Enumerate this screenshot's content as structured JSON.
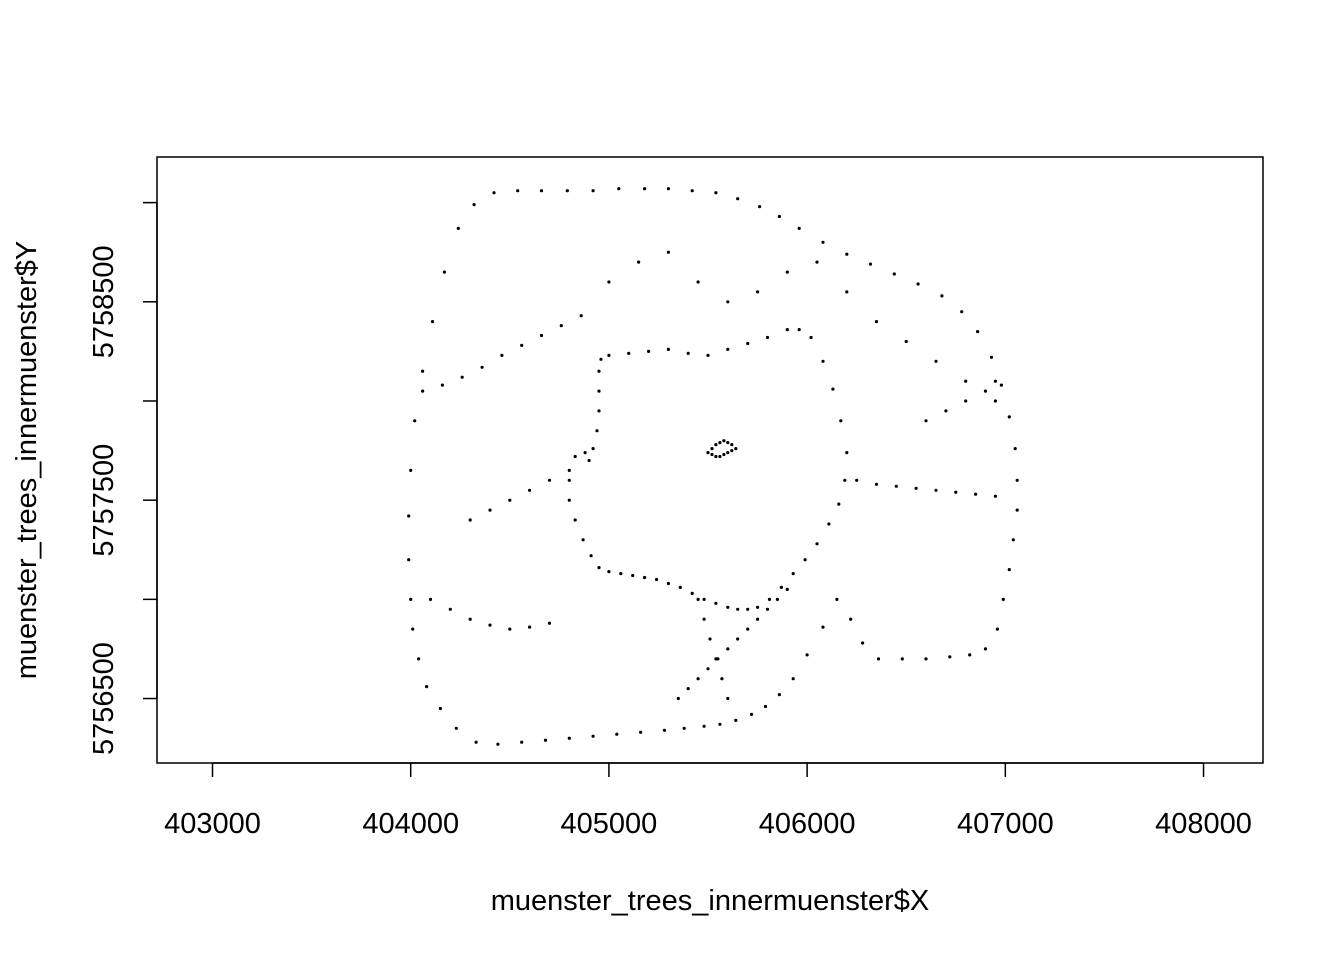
{
  "chart_data": {
    "type": "scatter",
    "title": "",
    "xlabel": "muenster_trees_innermuenster$X",
    "ylabel": "muenster_trees_innermuenster$Y",
    "xlim": [
      402720,
      408300
    ],
    "ylim": [
      5756175,
      5759230
    ],
    "x_ticks": [
      403000,
      404000,
      405000,
      406000,
      407000,
      408000
    ],
    "x_tick_labels": [
      "403000",
      "404000",
      "405000",
      "406000",
      "407000",
      "408000"
    ],
    "y_ticks": [
      5756500,
      5757000,
      5757500,
      5758000,
      5758500,
      5759000
    ],
    "y_tick_labels": [
      "5756500",
      "",
      "5757500",
      "",
      "5758500",
      ""
    ],
    "grid": false,
    "legend": "none",
    "point_color": "#000000",
    "point_style": "small filled dots",
    "series": [
      {
        "x": [
          404000,
          404020,
          404060,
          404110,
          404170,
          404240,
          404320,
          404420,
          404540,
          404660,
          404790,
          404920,
          405050,
          405180,
          405300,
          405420,
          405540,
          405650,
          405760,
          405860,
          405960,
          406080,
          406200,
          406320,
          406440,
          406560,
          406680,
          406780,
          406860,
          406930,
          406980,
          407020,
          407050,
          407060,
          407060,
          407040,
          407020,
          406990,
          406960,
          406900,
          406820,
          406720,
          406600,
          406480,
          406360,
          406280,
          406220,
          406150,
          406080,
          406000,
          405930,
          405860,
          405790,
          405720,
          405640,
          405560,
          405480,
          405380,
          405280,
          405160,
          405040,
          404920,
          404800,
          404680,
          404560,
          404440,
          404330,
          404230,
          404150,
          404080,
          404040,
          404010,
          404000,
          403990,
          403990
        ],
        "y": [
          5757650,
          5757900,
          5758150,
          5758400,
          5758650,
          5758870,
          5758990,
          5759050,
          5759060,
          5759060,
          5759060,
          5759060,
          5759070,
          5759070,
          5759070,
          5759060,
          5759050,
          5759020,
          5758980,
          5758930,
          5758870,
          5758800,
          5758740,
          5758690,
          5758640,
          5758590,
          5758530,
          5758450,
          5758350,
          5758220,
          5758080,
          5757920,
          5757760,
          5757600,
          5757450,
          5757300,
          5757150,
          5757000,
          5756850,
          5756750,
          5756720,
          5756710,
          5756700,
          5756700,
          5756700,
          5756780,
          5756900,
          5757000,
          5756860,
          5756720,
          5756600,
          5756520,
          5756460,
          5756420,
          5756390,
          5756370,
          5756360,
          5756350,
          5756340,
          5756330,
          5756320,
          5756310,
          5756300,
          5756290,
          5756280,
          5756270,
          5756280,
          5756350,
          5756450,
          5756560,
          5756700,
          5756850,
          5757000,
          5757200,
          5757420
        ]
      },
      {
        "x": [
          404960,
          405000,
          405100,
          405200,
          405300,
          405400,
          405500,
          405600,
          405700,
          405800,
          405900,
          405960,
          406020,
          406080,
          406130,
          406170,
          406200,
          406190,
          406160,
          406110,
          406050,
          405990,
          405930,
          405870,
          405810,
          405750,
          405700,
          405650,
          405600,
          405540,
          405480,
          405420,
          405360,
          405300,
          405240,
          405180,
          405120,
          405060,
          405000,
          404950,
          404910,
          404870,
          404830,
          404800,
          404800,
          404830,
          404880,
          404920,
          404940,
          404950,
          404950,
          404950
        ],
        "y": [
          5758210,
          5758230,
          5758240,
          5758250,
          5758260,
          5758240,
          5758230,
          5758260,
          5758290,
          5758320,
          5758360,
          5758360,
          5758320,
          5758200,
          5758060,
          5757900,
          5757740,
          5757600,
          5757480,
          5757380,
          5757280,
          5757200,
          5757130,
          5757060,
          5757000,
          5756960,
          5756950,
          5756950,
          5756960,
          5756980,
          5757000,
          5757030,
          5757060,
          5757080,
          5757100,
          5757110,
          5757120,
          5757130,
          5757140,
          5757160,
          5757220,
          5757300,
          5757400,
          5757500,
          5757600,
          5757720,
          5757740,
          5757760,
          5757850,
          5757950,
          5758050,
          5758150
        ]
      },
      {
        "x": [
          405500,
          405520,
          405540,
          405560,
          405580,
          405600,
          405620,
          405640,
          405520,
          405540,
          405560,
          405580,
          405600,
          405620
        ],
        "y": [
          5757740,
          5757760,
          5757780,
          5757790,
          5757800,
          5757790,
          5757780,
          5757760,
          5757730,
          5757720,
          5757720,
          5757730,
          5757740,
          5757750
        ]
      },
      {
        "x": [
          404060,
          404160,
          404260,
          404360,
          404460,
          404560,
          404660,
          404760,
          404860,
          405000,
          405150,
          405300,
          405450,
          405600,
          405750,
          405900,
          406050,
          406200,
          406350,
          406500,
          406650,
          406800,
          406950,
          404100,
          404200,
          404300,
          404400,
          404500,
          404600,
          404700,
          405350,
          405400,
          405450,
          405500,
          405550,
          405600,
          405650,
          405700,
          405750,
          405800,
          405850,
          405900,
          406250,
          406350,
          406450,
          406550,
          406650,
          406750,
          406850,
          406950,
          405450,
          405480,
          405510,
          405540,
          405570,
          405600,
          404300,
          404400,
          404500,
          404600,
          404700,
          404800,
          404900,
          406600,
          406700,
          406800,
          406900,
          406950
        ],
        "y": [
          5758050,
          5758080,
          5758120,
          5758170,
          5758230,
          5758280,
          5758330,
          5758380,
          5758430,
          5758600,
          5758700,
          5758750,
          5758600,
          5758500,
          5758550,
          5758650,
          5758700,
          5758550,
          5758400,
          5758300,
          5758200,
          5758100,
          5758000,
          5757000,
          5756950,
          5756900,
          5756870,
          5756850,
          5756860,
          5756880,
          5756500,
          5756550,
          5756600,
          5756650,
          5756700,
          5756750,
          5756800,
          5756850,
          5756900,
          5756950,
          5757000,
          5757050,
          5757600,
          5757580,
          5757570,
          5757560,
          5757550,
          5757540,
          5757530,
          5757520,
          5757000,
          5756900,
          5756800,
          5756700,
          5756600,
          5756500,
          5757400,
          5757450,
          5757500,
          5757550,
          5757600,
          5757650,
          5757700,
          5757900,
          5757950,
          5758000,
          5758050,
          5758100
        ]
      }
    ]
  }
}
